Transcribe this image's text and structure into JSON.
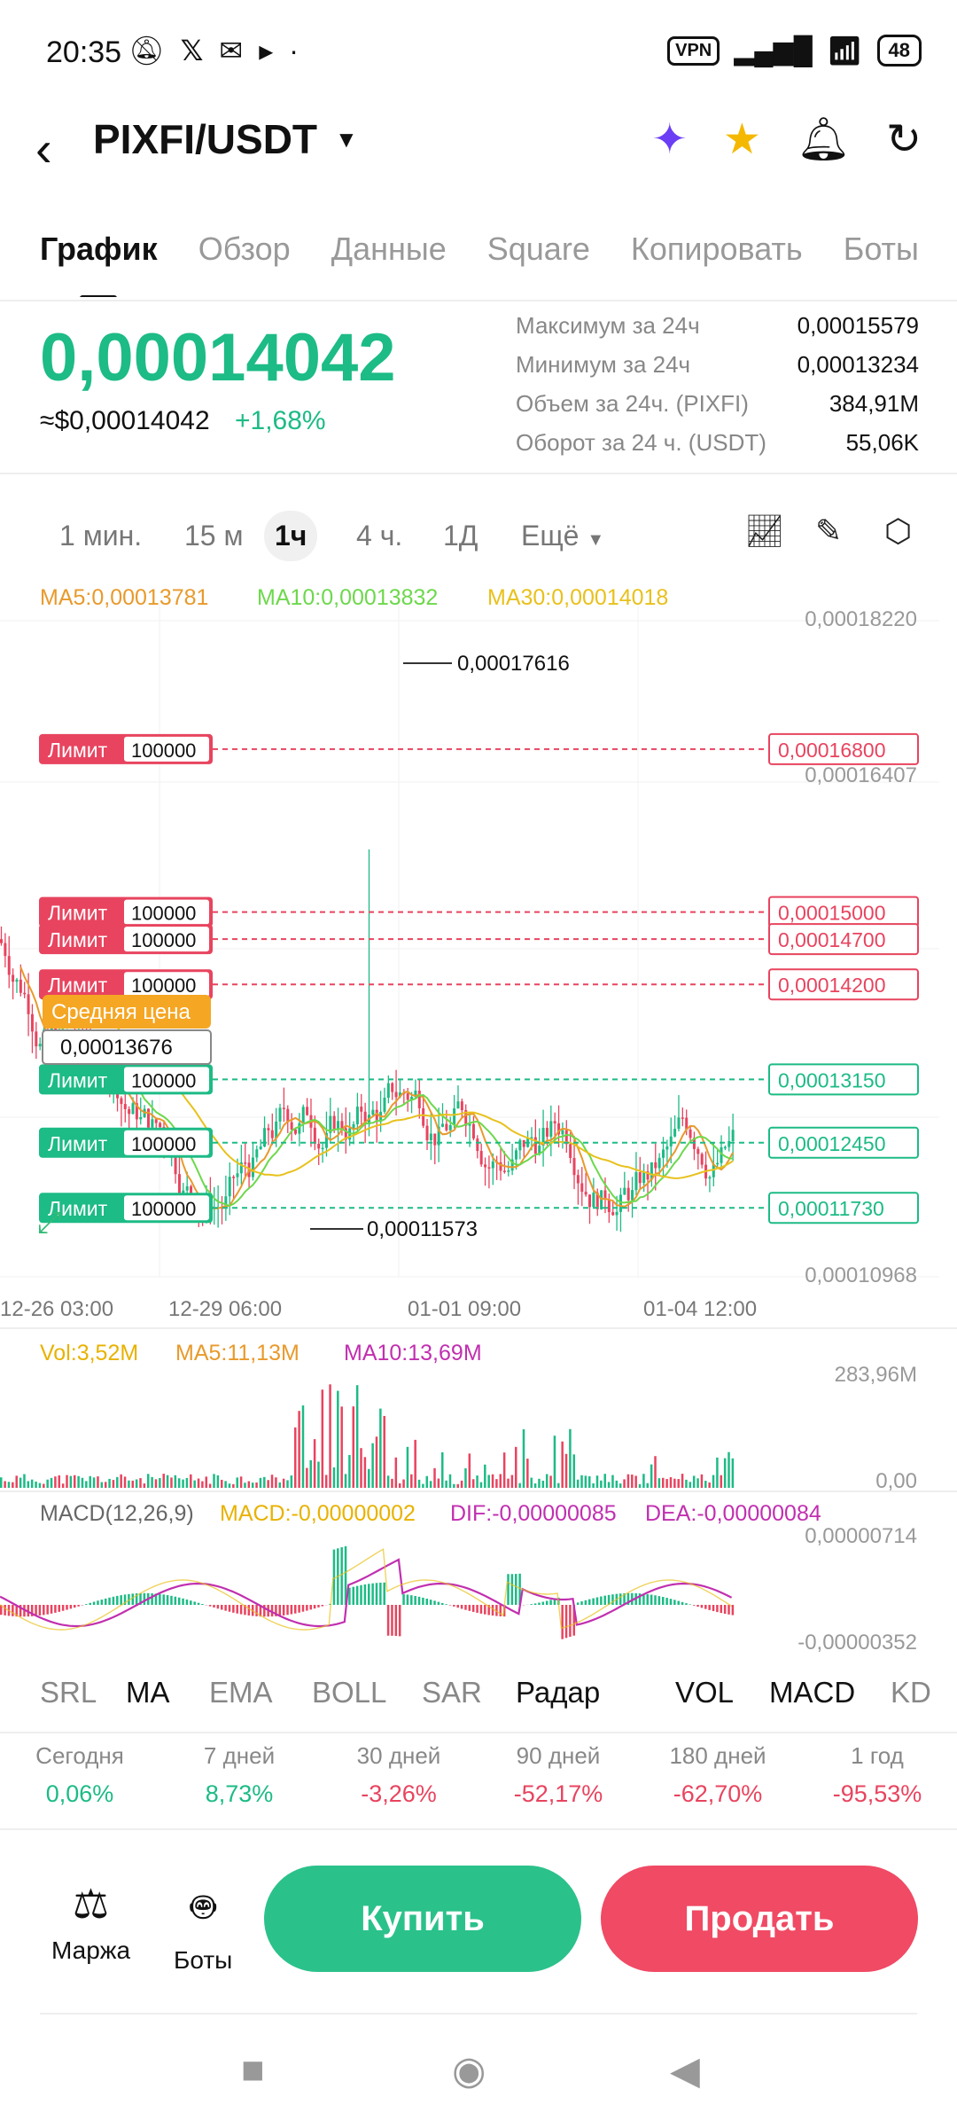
{
  "status_bar": {
    "time": "20:35",
    "vpn": "VPN",
    "battery": "48"
  },
  "header": {
    "pair": "PIXFI/USDT",
    "icons": [
      "back-icon",
      "ai-sparkle-icon",
      "star-icon",
      "alert-bell-icon",
      "share-icon"
    ]
  },
  "tabs": [
    "График",
    "Обзор",
    "Данные",
    "Square",
    "Копировать",
    "Боты"
  ],
  "price": {
    "last": "0,00014042",
    "usd": "≈$0,00014042",
    "change": "+1,68%"
  },
  "stats": [
    {
      "label": "Максимум за 24ч",
      "value": "0,00015579"
    },
    {
      "label": "Минимум за 24ч",
      "value": "0,00013234"
    },
    {
      "label": "Объем за 24ч. (PIXFI)",
      "value": "384,91M"
    },
    {
      "label": "Оборот за 24 ч. (USDT)",
      "value": "55,06K"
    }
  ],
  "intervals": [
    "1 мин.",
    "15 м",
    "1ч",
    "4 ч.",
    "1Д",
    "Ещё"
  ],
  "active_interval": "1ч",
  "chart_data": {
    "type": "candlestick",
    "ma_legend": {
      "ma5": "MA5:0,00013781",
      "ma10": "MA10:0,00013832",
      "ma30": "MA30:0,00014018"
    },
    "y_ticks": [
      "0,00018220",
      "0,00016407",
      "0,00010968"
    ],
    "high_label": "0,00017616",
    "low_label": "0,00011573",
    "x_labels": [
      "12-26 03:00",
      "12-29 06:00",
      "01-01 09:00",
      "01-04 12:00"
    ],
    "ylim": [
      0.00010968,
      0.0001822
    ],
    "sell_limits": [
      0.000168,
      0.00015,
      0.000147,
      0.000142
    ],
    "buy_limits": [
      0.0001315,
      0.0001245,
      0.0001173
    ],
    "limit_label": "Лимит",
    "limit_qty": "100000",
    "avg_label": "Средняя цена",
    "avg_price": "0,00013676",
    "volume": {
      "legend_vol": "Vol:3,52M",
      "legend_ma5": "MA5:11,13M",
      "legend_ma10": "MA10:13,69M",
      "max": "283,96M",
      "min": "0,00"
    },
    "macd": {
      "legend_title": "MACD(12,26,9)",
      "legend_macd": "MACD:-0,00000002",
      "legend_dif": "DIF:-0,00000085",
      "legend_dea": "DEA:-0,00000084",
      "max": "0,00000714",
      "min": "-0,00000352"
    }
  },
  "indicators": [
    "SRL",
    "MA",
    "EMA",
    "BOLL",
    "SAR",
    "Радар",
    "VOL",
    "MACD",
    "KD"
  ],
  "performance": [
    {
      "label": "Сегодня",
      "value": "0,06%",
      "dir": "pos"
    },
    {
      "label": "7 дней",
      "value": "8,73%",
      "dir": "pos"
    },
    {
      "label": "30 дней",
      "value": "-3,26%",
      "dir": "neg"
    },
    {
      "label": "90 дней",
      "value": "-52,17%",
      "dir": "neg"
    },
    {
      "label": "180 дней",
      "value": "-62,70%",
      "dir": "neg"
    },
    {
      "label": "1 год",
      "value": "-95,53%",
      "dir": "neg"
    }
  ],
  "actions": {
    "margin": "Маржа",
    "bots": "Боты",
    "buy": "Купить",
    "sell": "Продать"
  },
  "colors": {
    "up": "#1dbb85",
    "down": "#e8445f",
    "ma5": "#e89a2c",
    "ma10": "#6dd84c",
    "ma30": "#e8c11c",
    "macd_dif": "#e8c11c",
    "macd_dea": "#c12fb0"
  }
}
